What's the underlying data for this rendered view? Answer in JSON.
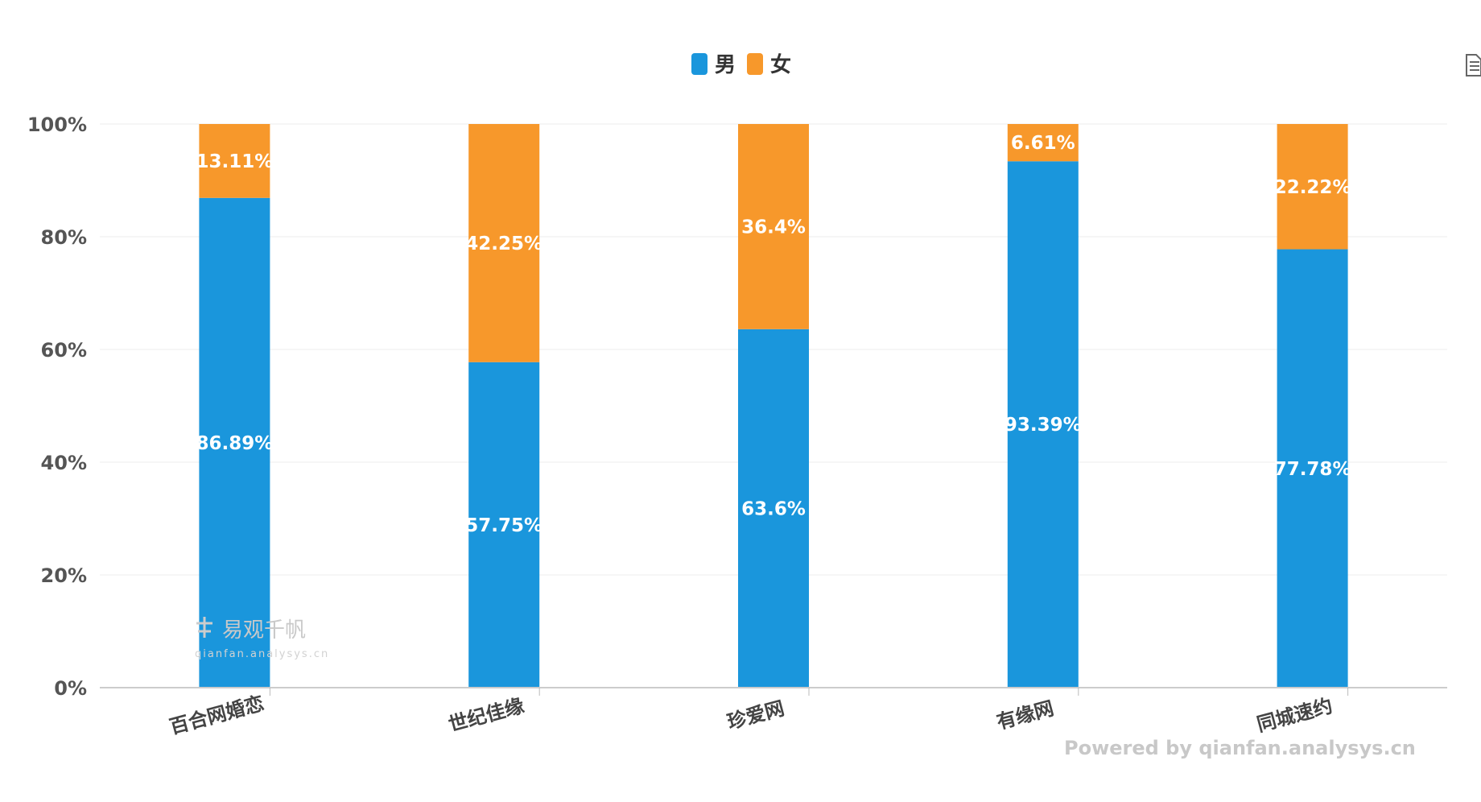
{
  "legend": {
    "items": [
      {
        "label": "男",
        "color": "#1a96dc"
      },
      {
        "label": "女",
        "color": "#f7982b"
      }
    ]
  },
  "watermark": {
    "main": "易观千帆",
    "sub": "qianfan.analysys.cn"
  },
  "powered_by": "Powered by qianfan.analysys.cn",
  "toolbar": {
    "save_icon": "document-icon"
  },
  "chart_data": {
    "type": "bar",
    "stacked": true,
    "categories": [
      "百合网婚恋",
      "世纪佳缘",
      "珍爱网",
      "有缘网",
      "同城速约"
    ],
    "series": [
      {
        "name": "男",
        "values": [
          86.89,
          57.75,
          63.6,
          93.39,
          77.78
        ],
        "labels": [
          "86.89%",
          "57.75%",
          "63.6%",
          "93.39%",
          "77.78%"
        ],
        "color": "#1a96dc"
      },
      {
        "name": "女",
        "values": [
          13.11,
          42.25,
          36.4,
          6.61,
          22.22
        ],
        "labels": [
          "13.11%",
          "42.25%",
          "36.4%",
          "6.61%",
          "22.22%"
        ],
        "color": "#f7982b"
      }
    ],
    "y_ticks": [
      "0%",
      "20%",
      "40%",
      "60%",
      "80%",
      "100%"
    ],
    "y_tick_values": [
      0,
      20,
      40,
      60,
      80,
      100
    ],
    "ylim": [
      0,
      100
    ],
    "grid": true,
    "legend_position": "top-center"
  }
}
